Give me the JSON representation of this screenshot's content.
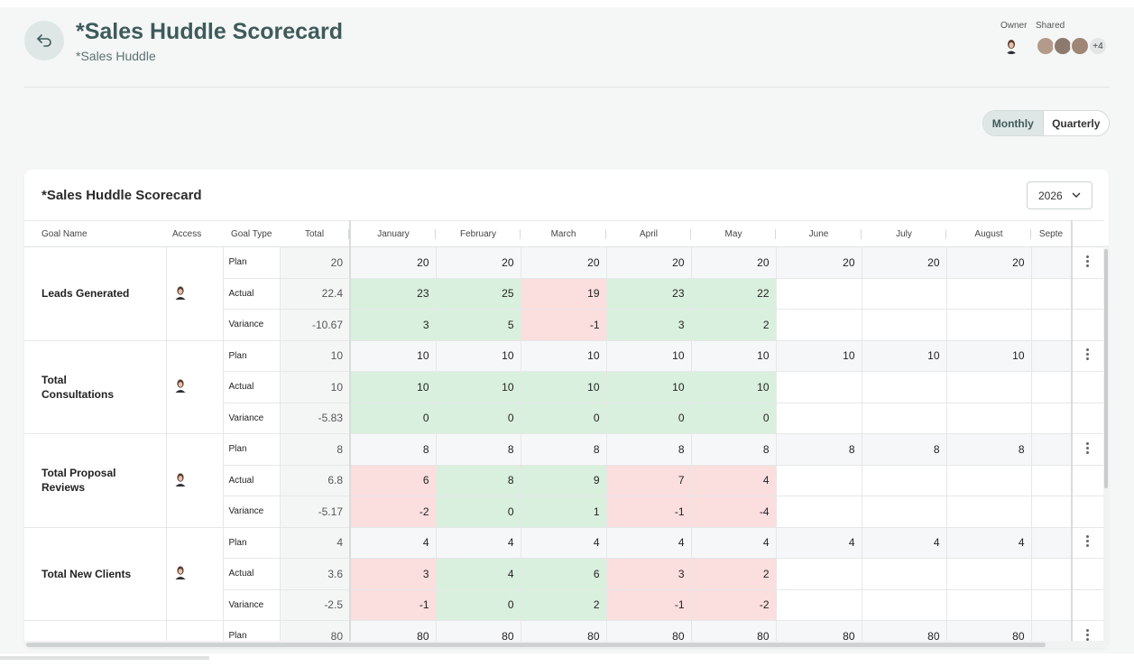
{
  "header": {
    "title": "*Sales Huddle Scorecard",
    "subtitle": "*Sales Huddle",
    "owner_label": "Owner",
    "shared_label": "Shared",
    "shared_more": "+4"
  },
  "view_toggle": {
    "monthly": "Monthly",
    "quarterly": "Quarterly",
    "selected": "Monthly"
  },
  "card": {
    "title": "*Sales Huddle Scorecard",
    "year": "2026"
  },
  "table": {
    "columns": [
      "Goal Name",
      "Access",
      "Goal Type",
      "Total",
      "January",
      "February",
      "March",
      "April",
      "May",
      "June",
      "July",
      "August",
      "Septe"
    ],
    "goals": [
      {
        "name": "Leads Generated",
        "rows": [
          {
            "type": "Plan",
            "total": "20",
            "months": [
              "20",
              "20",
              "20",
              "20",
              "20",
              "20",
              "20",
              "20",
              ""
            ]
          },
          {
            "type": "Actual",
            "total": "22.4",
            "months": [
              "23",
              "25",
              "19",
              "23",
              "22",
              "",
              "",
              "",
              ""
            ]
          },
          {
            "type": "Variance",
            "total": "-10.67",
            "months": [
              "3",
              "5",
              "-1",
              "3",
              "2",
              "",
              "",
              "",
              ""
            ]
          }
        ]
      },
      {
        "name": "Total Consultations",
        "rows": [
          {
            "type": "Plan",
            "total": "10",
            "months": [
              "10",
              "10",
              "10",
              "10",
              "10",
              "10",
              "10",
              "10",
              ""
            ]
          },
          {
            "type": "Actual",
            "total": "10",
            "months": [
              "10",
              "10",
              "10",
              "10",
              "10",
              "",
              "",
              "",
              ""
            ]
          },
          {
            "type": "Variance",
            "total": "-5.83",
            "months": [
              "0",
              "0",
              "0",
              "0",
              "0",
              "",
              "",
              "",
              ""
            ]
          }
        ]
      },
      {
        "name": "Total Proposal Reviews",
        "rows": [
          {
            "type": "Plan",
            "total": "8",
            "months": [
              "8",
              "8",
              "8",
              "8",
              "8",
              "8",
              "8",
              "8",
              ""
            ]
          },
          {
            "type": "Actual",
            "total": "6.8",
            "months": [
              "6",
              "8",
              "9",
              "7",
              "4",
              "",
              "",
              "",
              ""
            ]
          },
          {
            "type": "Variance",
            "total": "-5.17",
            "months": [
              "-2",
              "0",
              "1",
              "-1",
              "-4",
              "",
              "",
              "",
              ""
            ]
          }
        ]
      },
      {
        "name": "Total New Clients",
        "rows": [
          {
            "type": "Plan",
            "total": "4",
            "months": [
              "4",
              "4",
              "4",
              "4",
              "4",
              "4",
              "4",
              "4",
              ""
            ]
          },
          {
            "type": "Actual",
            "total": "3.6",
            "months": [
              "3",
              "4",
              "6",
              "3",
              "2",
              "",
              "",
              "",
              ""
            ]
          },
          {
            "type": "Variance",
            "total": "-2.5",
            "months": [
              "-1",
              "0",
              "2",
              "-1",
              "-2",
              "",
              "",
              "",
              ""
            ]
          }
        ]
      },
      {
        "name": "",
        "rows": [
          {
            "type": "Plan",
            "total": "80",
            "months": [
              "80",
              "80",
              "80",
              "80",
              "80",
              "80",
              "80",
              "80",
              ""
            ]
          }
        ]
      }
    ],
    "status_colors": {
      "met": [
        "green",
        "green",
        "red",
        "green",
        "green"
      ],
      "consult": [
        "green",
        "green",
        "green",
        "green",
        "green"
      ],
      "proposal": [
        "red",
        "green",
        "green",
        "red",
        "red"
      ],
      "clients": [
        "red",
        "green",
        "green",
        "red",
        "red"
      ]
    }
  },
  "colors": {
    "accent": "#3e5b5a",
    "good": "#daf0de",
    "bad": "#fbdede"
  }
}
